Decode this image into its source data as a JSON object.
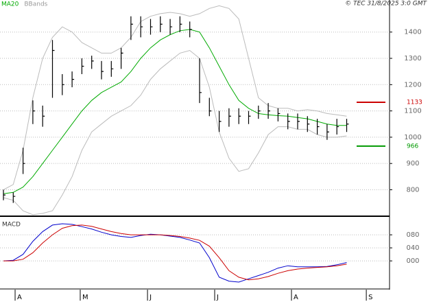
{
  "chart_data": [
    {
      "type": "ohlc",
      "source": "© TEC 31/8/2025 3:0 GMT",
      "xlim": [
        -0.35,
        39.37
      ],
      "xticks": [
        {
          "value": 1.19,
          "label": "A"
        },
        {
          "value": 7.83,
          "label": "M"
        },
        {
          "value": 14.69,
          "label": "J"
        },
        {
          "value": 21.54,
          "label": "J"
        },
        {
          "value": 29.37,
          "label": "A"
        },
        {
          "value": 37.0,
          "label": "S"
        }
      ],
      "ylim": [
        702,
        1522
      ],
      "yticks": [
        800,
        900,
        1000,
        1100,
        1200,
        1300,
        1400
      ],
      "grid": true,
      "high": [
        800,
        790,
        960,
        1140,
        1120,
        1370,
        1240,
        1250,
        1300,
        1310,
        1290,
        1290,
        1340,
        1460,
        1460,
        1450,
        1460,
        1450,
        1460,
        1440,
        1300,
        1150,
        1100,
        1110,
        1110,
        1100,
        1120,
        1130,
        1110,
        1090,
        1090,
        1080,
        1070,
        1050,
        1070,
        1070
      ],
      "low": [
        760,
        750,
        860,
        1050,
        1040,
        1150,
        1160,
        1190,
        1240,
        1260,
        1220,
        1230,
        1260,
        1370,
        1380,
        1390,
        1400,
        1390,
        1400,
        1380,
        1130,
        1080,
        1020,
        1040,
        1050,
        1050,
        1070,
        1070,
        1060,
        1030,
        1030,
        1020,
        1010,
        990,
        1010,
        1020
      ],
      "close": [
        780,
        775,
        900,
        1100,
        1080,
        1330,
        1200,
        1220,
        1270,
        1290,
        1250,
        1260,
        1320,
        1430,
        1420,
        1420,
        1430,
        1420,
        1430,
        1410,
        1170,
        1100,
        1060,
        1080,
        1080,
        1080,
        1100,
        1100,
        1090,
        1060,
        1060,
        1050,
        1040,
        1020,
        1040,
        1050
      ],
      "bar_color": "#000000",
      "series": [
        {
          "name": "MA20",
          "color": "#00aa00",
          "values": [
            785,
            790,
            810,
            850,
            900,
            950,
            1000,
            1050,
            1100,
            1140,
            1170,
            1190,
            1210,
            1250,
            1300,
            1340,
            1370,
            1390,
            1405,
            1410,
            1400,
            1340,
            1270,
            1200,
            1140,
            1110,
            1090,
            1085,
            1082,
            1080,
            1075,
            1070,
            1060,
            1050,
            1045,
            1045
          ]
        },
        {
          "name": "BBands",
          "color": "#bbbbbb",
          "upper": [
            800,
            820,
            950,
            1150,
            1300,
            1380,
            1420,
            1400,
            1360,
            1340,
            1320,
            1320,
            1340,
            1380,
            1440,
            1460,
            1470,
            1475,
            1470,
            1460,
            1470,
            1490,
            1500,
            1490,
            1450,
            1300,
            1150,
            1120,
            1110,
            1110,
            1100,
            1105,
            1100,
            1090,
            1085,
            1080
          ],
          "lower": [
            770,
            760,
            720,
            705,
            710,
            720,
            780,
            850,
            950,
            1020,
            1050,
            1080,
            1100,
            1120,
            1160,
            1220,
            1260,
            1290,
            1320,
            1330,
            1300,
            1190,
            1020,
            920,
            870,
            880,
            940,
            1010,
            1040,
            1040,
            1030,
            1030,
            1010,
            1000,
            1000,
            1005
          ]
        }
      ],
      "markers": [
        {
          "value": 1133,
          "color": "#cc0000"
        },
        {
          "value": 966,
          "color": "#009900"
        }
      ]
    },
    {
      "type": "macd",
      "title": "MACD",
      "ylim": [
        -84,
        135
      ],
      "yticks": [
        {
          "value": 0,
          "label": "000"
        },
        {
          "value": 40,
          "label": "040"
        },
        {
          "value": 80,
          "label": "080"
        }
      ],
      "series": [
        {
          "color": "#0000cc",
          "values": [
            0,
            2,
            20,
            60,
            90,
            110,
            114,
            112,
            105,
            98,
            88,
            80,
            75,
            72,
            78,
            82,
            80,
            76,
            72,
            64,
            55,
            10,
            -50,
            -62,
            -65,
            -55,
            -45,
            -35,
            -22,
            -15,
            -18,
            -18,
            -18,
            -17,
            -12,
            -5
          ]
        },
        {
          "color": "#cc0000",
          "values": [
            0,
            0,
            5,
            25,
            55,
            80,
            100,
            108,
            110,
            106,
            98,
            90,
            84,
            80,
            80,
            80,
            80,
            78,
            75,
            70,
            63,
            45,
            10,
            -30,
            -50,
            -58,
            -55,
            -48,
            -38,
            -30,
            -25,
            -22,
            -20,
            -18,
            -15,
            -10
          ]
        }
      ]
    }
  ]
}
